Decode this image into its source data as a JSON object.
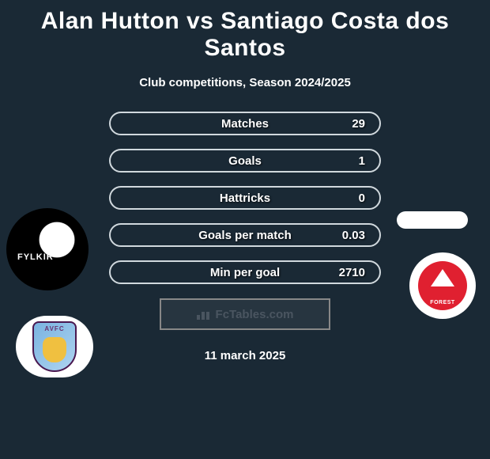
{
  "title": "Alan Hutton vs Santiago Costa dos Santos",
  "subtitle": "Club competitions, Season 2024/2025",
  "stats": [
    {
      "label": "Matches",
      "value": "29"
    },
    {
      "label": "Goals",
      "value": "1"
    },
    {
      "label": "Hattricks",
      "value": "0"
    },
    {
      "label": "Goals per match",
      "value": "0.03"
    },
    {
      "label": "Min per goal",
      "value": "2710"
    }
  ],
  "watermark": "FcTables.com",
  "dateline": "11 march 2025",
  "colors": {
    "background": "#1a2935",
    "text": "#ffffff",
    "border": "#d0d8dd",
    "forest_red": "#e02030",
    "avfc_blue": "#7ab3e0",
    "avfc_border": "#4a1850",
    "avfc_lion": "#f0c040",
    "watermark_text": "#4a5560"
  },
  "badges": {
    "left_top": {
      "name": "Fylkir",
      "bg": "#000000",
      "text": "FYLKIR"
    },
    "left_bottom": {
      "name": "Aston Villa",
      "text": "AVFC"
    },
    "right_top": {
      "name": "oval-white"
    },
    "right_bottom": {
      "name": "Nottingham Forest",
      "text": "FOREST"
    }
  },
  "typography": {
    "title_size": 30,
    "subtitle_size": 15,
    "stat_size": 15,
    "date_size": 15
  }
}
